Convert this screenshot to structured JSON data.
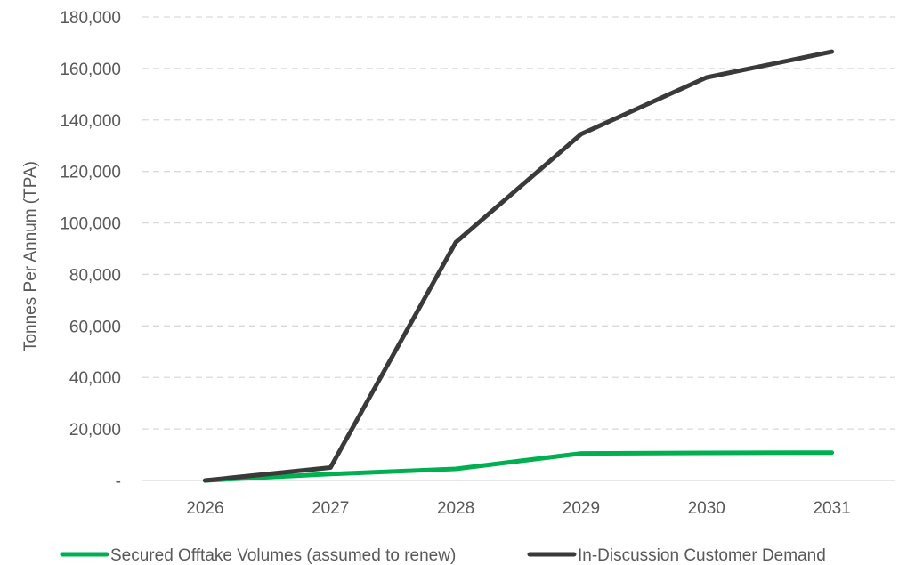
{
  "chart_data": {
    "type": "line",
    "title": "",
    "xlabel": "",
    "ylabel": "Tonnes Per Annum (TPA)",
    "categories": [
      "2026",
      "2027",
      "2028",
      "2029",
      "2030",
      "2031"
    ],
    "ylim": [
      0,
      180000
    ],
    "yticks": [
      0,
      20000,
      40000,
      60000,
      80000,
      100000,
      120000,
      140000,
      160000,
      180000
    ],
    "ytick_labels": [
      "-",
      "20,000",
      "40,000",
      "60,000",
      "80,000",
      "100,000",
      "120,000",
      "140,000",
      "160,000",
      "180,000"
    ],
    "grid": "horizontal dashed",
    "legend_position": "bottom",
    "series": [
      {
        "name": "Secured Offtake Volumes (assumed to renew)",
        "color": "#00b050",
        "values": [
          0,
          2500,
          4500,
          10500,
          10700,
          10800
        ]
      },
      {
        "name": "In-Discussion Customer Demand",
        "color": "#3a3a3a",
        "values": [
          0,
          5000,
          92500,
          134500,
          156500,
          166500
        ]
      }
    ]
  }
}
